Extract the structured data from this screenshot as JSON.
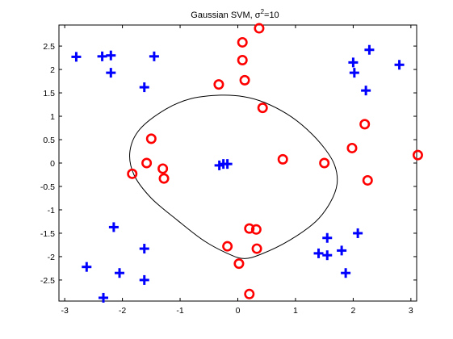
{
  "chart_data": {
    "type": "scatter",
    "title_prefix": "Gaussian SVM, σ",
    "title_sup": "2",
    "title_suffix": "=10",
    "xlim": [
      -3.1,
      3.1
    ],
    "ylim": [
      -2.95,
      2.95
    ],
    "x_ticks": [
      -3,
      -2,
      -1,
      0,
      1,
      2,
      3
    ],
    "y_ticks": [
      -2.5,
      -2,
      -1.5,
      -1,
      -0.5,
      0,
      0.5,
      1,
      1.5,
      2,
      2.5
    ],
    "x_tick_labels": [
      "-3",
      "-2",
      "-1",
      "0",
      "1",
      "2",
      "3"
    ],
    "y_tick_labels": [
      "-2.5",
      "-2",
      "-1.5",
      "-1",
      "-0.5",
      "0",
      "0.5",
      "1",
      "1.5",
      "2",
      "2.5"
    ],
    "grid": false,
    "colors": {
      "positive": "#0000ff",
      "negative": "#ff0000",
      "boundary": "#000000"
    },
    "series": [
      {
        "marker": "plus",
        "points": [
          [
            -2.8,
            2.27
          ],
          [
            -2.35,
            2.28
          ],
          [
            -2.2,
            2.3
          ],
          [
            -2.2,
            1.93
          ],
          [
            -1.45,
            2.28
          ],
          [
            -1.62,
            1.62
          ],
          [
            2.0,
            2.15
          ],
          [
            2.02,
            1.93
          ],
          [
            2.28,
            2.42
          ],
          [
            2.8,
            2.1
          ],
          [
            2.22,
            1.55
          ],
          [
            -0.32,
            -0.05
          ],
          [
            -0.25,
            -0.02
          ],
          [
            -0.18,
            -0.02
          ],
          [
            -2.15,
            -1.37
          ],
          [
            -1.62,
            -1.83
          ],
          [
            -2.62,
            -2.22
          ],
          [
            -2.05,
            -2.35
          ],
          [
            -1.62,
            -2.5
          ],
          [
            -2.33,
            -2.88
          ],
          [
            1.55,
            -1.6
          ],
          [
            1.4,
            -1.93
          ],
          [
            1.55,
            -1.97
          ],
          [
            1.8,
            -1.87
          ],
          [
            2.08,
            -1.5
          ],
          [
            1.87,
            -2.35
          ]
        ]
      },
      {
        "marker": "circle",
        "points": [
          [
            0.37,
            2.88
          ],
          [
            0.08,
            2.58
          ],
          [
            0.08,
            2.2
          ],
          [
            0.12,
            1.77
          ],
          [
            -0.33,
            1.68
          ],
          [
            0.43,
            1.18
          ],
          [
            -1.5,
            0.52
          ],
          [
            -1.58,
            0.0
          ],
          [
            -1.83,
            -0.23
          ],
          [
            -1.3,
            -0.12
          ],
          [
            -1.28,
            -0.33
          ],
          [
            0.78,
            0.08
          ],
          [
            1.5,
            0.0
          ],
          [
            1.98,
            0.32
          ],
          [
            2.2,
            0.83
          ],
          [
            2.25,
            -0.37
          ],
          [
            3.12,
            0.17
          ],
          [
            0.2,
            -1.4
          ],
          [
            0.32,
            -1.42
          ],
          [
            -0.18,
            -1.78
          ],
          [
            0.33,
            -1.83
          ],
          [
            0.02,
            -2.15
          ],
          [
            0.2,
            -2.8
          ]
        ]
      }
    ],
    "decision_boundary": {
      "points": [
        [
          -0.3,
          1.45
        ],
        [
          0.1,
          1.42
        ],
        [
          0.45,
          1.3
        ],
        [
          0.85,
          1.05
        ],
        [
          1.2,
          0.72
        ],
        [
          1.5,
          0.32
        ],
        [
          1.68,
          -0.05
        ],
        [
          1.72,
          -0.45
        ],
        [
          1.6,
          -0.85
        ],
        [
          1.35,
          -1.25
        ],
        [
          0.9,
          -1.65
        ],
        [
          0.4,
          -1.95
        ],
        [
          0.1,
          -2.04
        ],
        [
          -0.2,
          -1.92
        ],
        [
          -0.6,
          -1.65
        ],
        [
          -1.05,
          -1.22
        ],
        [
          -1.5,
          -0.75
        ],
        [
          -1.8,
          -0.25
        ],
        [
          -1.87,
          0.25
        ],
        [
          -1.7,
          0.72
        ],
        [
          -1.25,
          1.15
        ],
        [
          -0.8,
          1.38
        ]
      ]
    }
  }
}
